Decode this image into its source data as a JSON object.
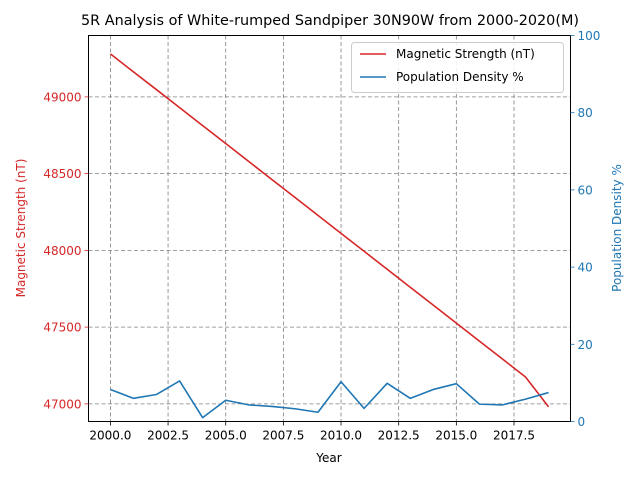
{
  "chart_data": {
    "type": "line",
    "title": "5R Analysis of White-rumped Sandpiper 30N90W from 2000-2020(M)",
    "xlabel": "Year",
    "ylabel_left": "Magnetic Strength (nT)",
    "ylabel_right": "Population Density %",
    "x": [
      2000,
      2001,
      2002,
      2003,
      2004,
      2005,
      2006,
      2007,
      2008,
      2009,
      2010,
      2011,
      2012,
      2013,
      2014,
      2015,
      2016,
      2017,
      2018,
      2019
    ],
    "xlim": [
      1999.05,
      2019.95
    ],
    "x_ticks": [
      2000.0,
      2002.5,
      2005.0,
      2007.5,
      2010.0,
      2012.5,
      2015.0,
      2017.5
    ],
    "x_tick_labels": [
      "2000.0",
      "2002.5",
      "2005.0",
      "2007.5",
      "2010.0",
      "2012.5",
      "2015.0",
      "2017.5"
    ],
    "left_axis": {
      "ylim": [
        46885,
        49400
      ],
      "ticks": [
        47000,
        47500,
        48000,
        48500,
        49000
      ],
      "tick_labels": [
        "47000",
        "47500",
        "48000",
        "48500",
        "49000"
      ],
      "color": "#d62728"
    },
    "right_axis": {
      "ylim": [
        0,
        100
      ],
      "ticks": [
        0,
        20,
        40,
        60,
        80,
        100
      ],
      "tick_labels": [
        "0",
        "20",
        "40",
        "60",
        "80",
        "100"
      ],
      "color": "#1f77b4"
    },
    "series": [
      {
        "name": "Magnetic Strength (nT)",
        "axis": "left",
        "color": "#d62728",
        "values": [
          49280,
          49163,
          49047,
          48930,
          48813,
          48696,
          48579,
          48462,
          48345,
          48228,
          48111,
          47994,
          47877,
          47760,
          47643,
          47526,
          47409,
          47292,
          47175,
          46980
        ]
      },
      {
        "name": "Population Density %",
        "axis": "right",
        "color": "#1f77b4",
        "values": [
          8.3,
          6.0,
          7.0,
          10.5,
          1.0,
          5.5,
          4.3,
          3.9,
          3.3,
          2.4,
          10.3,
          3.4,
          9.9,
          6.0,
          8.3,
          9.8,
          4.5,
          4.3,
          5.8,
          7.5
        ]
      }
    ],
    "grid": true,
    "grid_style": "dashed",
    "legend_position": "top-right"
  }
}
